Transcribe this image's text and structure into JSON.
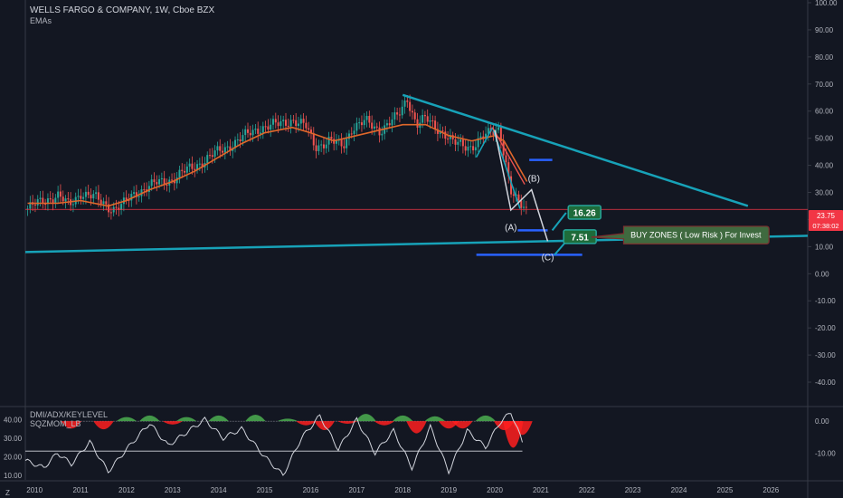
{
  "header": {
    "title": "WELLS FARGO & COMPANY, 1W, Cboe BZX",
    "study": "EMAs"
  },
  "price_badge": {
    "value": "23.75",
    "countdown": "07:38:02",
    "color": "#f23645"
  },
  "colors": {
    "background": "#131722",
    "candle_up": "#26a69a",
    "candle_down": "#ef5350",
    "ema": "#e0672a",
    "trendline": "#17a2b8",
    "zone_line": "#2962ff",
    "wave": "#d1d4dc",
    "label_fill": "#1e6b3a",
    "label_border": "#26a69a"
  },
  "annotations": {
    "wave_a": "(A)",
    "wave_b": "(B)",
    "wave_c": "(C)",
    "target_1": "16.26",
    "target_2": "7.51",
    "buy_zone": "BUY ZONES ( Low Risk ) For Invest"
  },
  "indicator": {
    "title_1": "DMI/ADX/KEYLEVEL",
    "title_2": "SQZMOM_LB"
  },
  "chart_data": [
    {
      "type": "candlestick",
      "title": "WELLS FARGO & COMPANY, 1W, Cboe BZX",
      "xlim": [
        2009.8,
        2026.8
      ],
      "ylim": [
        -45,
        100
      ],
      "yticks": [
        "100.00",
        "90.00",
        "80.00",
        "70.00",
        "60.00",
        "50.00",
        "40.00",
        "30.00",
        "20.00",
        "10.00",
        "0.00",
        "-10.00",
        "-20.00",
        "-30.00",
        "-40.00"
      ],
      "xticks": [
        "2010",
        "2011",
        "2012",
        "2013",
        "2014",
        "2015",
        "2016",
        "2017",
        "2018",
        "2019",
        "2020",
        "2021",
        "2022",
        "2023",
        "2024",
        "2025",
        "2026"
      ],
      "price_path": [
        [
          2009.85,
          24
        ],
        [
          2010.2,
          27
        ],
        [
          2010.5,
          29
        ],
        [
          2010.75,
          25
        ],
        [
          2011.0,
          30
        ],
        [
          2011.3,
          28
        ],
        [
          2011.7,
          24
        ],
        [
          2011.9,
          25
        ],
        [
          2012.2,
          30
        ],
        [
          2012.6,
          33
        ],
        [
          2013.0,
          35
        ],
        [
          2013.5,
          40
        ],
        [
          2014.0,
          45
        ],
        [
          2014.5,
          50
        ],
        [
          2014.9,
          54
        ],
        [
          2015.3,
          55
        ],
        [
          2015.6,
          57
        ],
        [
          2015.9,
          54
        ],
        [
          2016.1,
          47
        ],
        [
          2016.4,
          49
        ],
        [
          2016.7,
          47
        ],
        [
          2016.9,
          54
        ],
        [
          2017.2,
          56
        ],
        [
          2017.5,
          53
        ],
        [
          2017.9,
          58
        ],
        [
          2018.1,
          65
        ],
        [
          2018.3,
          55
        ],
        [
          2018.5,
          57
        ],
        [
          2018.9,
          52
        ],
        [
          2019.1,
          48
        ],
        [
          2019.5,
          47
        ],
        [
          2019.9,
          52
        ],
        [
          2020.1,
          54
        ],
        [
          2020.25,
          40
        ],
        [
          2020.35,
          30
        ],
        [
          2020.45,
          27
        ],
        [
          2020.6,
          25
        ],
        [
          2020.7,
          23.75
        ]
      ],
      "ema_path": [
        [
          2009.85,
          26
        ],
        [
          2010.5,
          26
        ],
        [
          2011.0,
          27
        ],
        [
          2011.6,
          25
        ],
        [
          2012.0,
          27
        ],
        [
          2012.5,
          31
        ],
        [
          2013.0,
          34
        ],
        [
          2013.5,
          38
        ],
        [
          2014.0,
          43
        ],
        [
          2014.5,
          48
        ],
        [
          2015.0,
          52
        ],
        [
          2015.6,
          54
        ],
        [
          2016.0,
          52
        ],
        [
          2016.5,
          49
        ],
        [
          2017.0,
          51
        ],
        [
          2017.5,
          53
        ],
        [
          2018.0,
          55
        ],
        [
          2018.5,
          55
        ],
        [
          2019.0,
          51
        ],
        [
          2019.5,
          49
        ],
        [
          2020.0,
          51
        ],
        [
          2020.2,
          49
        ],
        [
          2020.5,
          40
        ],
        [
          2020.7,
          34
        ]
      ],
      "resistance_line": [
        [
          2018.0,
          66
        ],
        [
          2025.5,
          25
        ]
      ],
      "support_line": [
        [
          2009.8,
          8
        ],
        [
          2026.8,
          14
        ]
      ],
      "current_price": 23.75,
      "zones": [
        {
          "x": [
            2020.75,
            2021.25
          ],
          "y": 42
        },
        {
          "x": [
            2020.5,
            2021.15
          ],
          "y": 16
        },
        {
          "x": [
            2019.6,
            2021.9
          ],
          "y": 7
        }
      ],
      "wave": [
        [
          2020.0,
          53
        ],
        [
          2020.35,
          23.5
        ],
        [
          2020.8,
          31
        ],
        [
          2021.15,
          12
        ]
      ]
    },
    {
      "type": "indicator",
      "title": "DMI/ADX/KEYLEVEL",
      "left_ylim": [
        8,
        46
      ],
      "left_yticks": [
        "40.00",
        "30.00",
        "20.00",
        "10.00"
      ],
      "right_ylim": [
        -18,
        4
      ],
      "right_yticks": [
        "0.00",
        "-10.00"
      ],
      "key_level": 23,
      "adx_path": [
        [
          2009.8,
          18
        ],
        [
          2010.2,
          14
        ],
        [
          2010.5,
          22
        ],
        [
          2010.8,
          16
        ],
        [
          2011.2,
          28
        ],
        [
          2011.6,
          12
        ],
        [
          2012.0,
          24
        ],
        [
          2012.5,
          38
        ],
        [
          2012.9,
          26
        ],
        [
          2013.3,
          33
        ],
        [
          2013.7,
          40
        ],
        [
          2014.1,
          30
        ],
        [
          2014.5,
          35
        ],
        [
          2015.0,
          20
        ],
        [
          2015.4,
          10
        ],
        [
          2015.8,
          30
        ],
        [
          2016.2,
          42
        ],
        [
          2016.6,
          24
        ],
        [
          2017.0,
          40
        ],
        [
          2017.4,
          22
        ],
        [
          2017.8,
          34
        ],
        [
          2018.2,
          14
        ],
        [
          2018.6,
          36
        ],
        [
          2019.0,
          12
        ],
        [
          2019.4,
          34
        ],
        [
          2019.8,
          25
        ],
        [
          2020.1,
          38
        ],
        [
          2020.35,
          44
        ],
        [
          2020.6,
          28
        ]
      ],
      "momentum": [
        [
          2010.8,
          -4
        ],
        [
          2011.5,
          -4.5
        ],
        [
          2012.0,
          2
        ],
        [
          2012.5,
          3
        ],
        [
          2013.0,
          -1.5
        ],
        [
          2013.3,
          2
        ],
        [
          2014.0,
          3
        ],
        [
          2014.8,
          3.5
        ],
        [
          2015.5,
          1
        ],
        [
          2015.9,
          -2
        ],
        [
          2016.3,
          -5
        ],
        [
          2016.8,
          -1
        ],
        [
          2017.2,
          4
        ],
        [
          2017.6,
          -2
        ],
        [
          2018.0,
          3
        ],
        [
          2018.3,
          -7
        ],
        [
          2018.7,
          2.5
        ],
        [
          2019.0,
          -4
        ],
        [
          2019.3,
          -4
        ],
        [
          2019.8,
          3
        ],
        [
          2020.2,
          -5
        ],
        [
          2020.4,
          -16
        ],
        [
          2020.6,
          -8
        ]
      ]
    }
  ]
}
